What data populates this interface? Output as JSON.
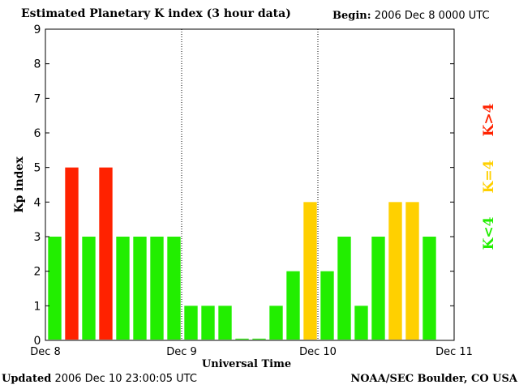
{
  "header": {
    "title": "Estimated Planetary K index (3 hour data)",
    "begin_label": "Begin:",
    "begin_value": "2006 Dec 8 0000 UTC"
  },
  "footer": {
    "updated_label": "Updated",
    "updated_value": "2006 Dec 10 23:00:05 UTC",
    "credit": "NOAA/SEC Boulder, CO USA"
  },
  "legend": {
    "high": "K>4",
    "equal": "K=4",
    "low": "K<4"
  },
  "colors": {
    "high": "#ff2200",
    "equal": "#ffd000",
    "low": "#22ee00"
  },
  "chart_data": {
    "type": "bar",
    "title": "Estimated Planetary K index (3 hour data)",
    "xlabel": "Universal Time",
    "ylabel": "Kp index",
    "ylim": [
      0,
      9
    ],
    "yticks": [
      "0",
      "1",
      "2",
      "3",
      "4",
      "5",
      "6",
      "7",
      "8",
      "9"
    ],
    "xticks": [
      "Dec 8",
      "Dec 9",
      "Dec 10",
      "Dec 11"
    ],
    "x_days": 3,
    "bars_per_day": 8,
    "values": [
      3,
      5,
      3,
      5,
      3,
      3,
      3,
      3,
      1,
      1,
      1,
      0.05,
      0.05,
      1,
      2,
      4,
      2,
      3,
      1,
      3,
      4,
      4,
      3
    ],
    "day_separators": [
      "Dec 9",
      "Dec 10"
    ]
  }
}
